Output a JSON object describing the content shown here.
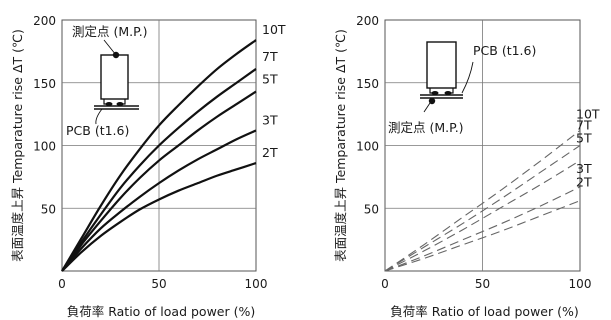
{
  "chart_data": [
    {
      "type": "line",
      "xlabel": "負荷率  Ratio of load power  (%)",
      "ylabel": "表面温度上昇  Temparature rise  ΔT (℃)",
      "xlim": [
        0,
        100
      ],
      "ylim": [
        0,
        200
      ],
      "x_ticks": [
        "0",
        "50",
        "100"
      ],
      "y_ticks": [
        "50",
        "100",
        "150",
        "200"
      ],
      "grid": true,
      "line_style": "solid",
      "series": [
        {
          "name": "10T",
          "x": [
            0,
            10,
            20,
            30,
            40,
            50,
            60,
            70,
            80,
            90,
            100
          ],
          "y": [
            0,
            26,
            52,
            76,
            97,
            116,
            132,
            147,
            161,
            173,
            184
          ]
        },
        {
          "name": "7T",
          "x": [
            0,
            10,
            20,
            30,
            40,
            50,
            60,
            70,
            80,
            90,
            100
          ],
          "y": [
            0,
            23,
            45,
            66,
            84,
            100,
            114,
            127,
            139,
            150,
            161
          ]
        },
        {
          "name": "5T",
          "x": [
            0,
            10,
            20,
            30,
            40,
            50,
            60,
            70,
            80,
            90,
            100
          ],
          "y": [
            0,
            21,
            40,
            58,
            74,
            88,
            100,
            112,
            123,
            133,
            143
          ]
        },
        {
          "name": "3T",
          "x": [
            0,
            10,
            20,
            30,
            40,
            50,
            60,
            70,
            80,
            90,
            100
          ],
          "y": [
            0,
            18,
            34,
            47,
            59,
            70,
            80,
            89,
            97,
            105,
            112
          ]
        },
        {
          "name": "2T",
          "x": [
            0,
            10,
            20,
            30,
            40,
            50,
            60,
            70,
            80,
            90,
            100
          ],
          "y": [
            0,
            15,
            28,
            39,
            49,
            57,
            64,
            70,
            76,
            81,
            86
          ]
        }
      ],
      "inset": {
        "point_label": "測定点 (M.P.)",
        "pcb_label": "PCB (t1.6)"
      }
    },
    {
      "type": "line",
      "xlabel": "負荷率  Ratio of load power  (%)",
      "ylabel": "表面温度上昇  Temparature rise  ΔT (℃)",
      "xlim": [
        0,
        100
      ],
      "ylim": [
        0,
        200
      ],
      "x_ticks": [
        "0",
        "50",
        "100"
      ],
      "y_ticks": [
        "50",
        "100",
        "150",
        "200"
      ],
      "grid": true,
      "line_style": "dashed",
      "series": [
        {
          "name": "10T",
          "x": [
            0,
            20,
            40,
            60,
            80,
            100
          ],
          "y": [
            0,
            21,
            43,
            65,
            88,
            112
          ]
        },
        {
          "name": "7T",
          "x": [
            0,
            20,
            40,
            60,
            80,
            100
          ],
          "y": [
            0,
            19,
            38,
            58,
            79,
            100
          ]
        },
        {
          "name": "5T",
          "x": [
            0,
            20,
            40,
            60,
            80,
            100
          ],
          "y": [
            0,
            16,
            33,
            51,
            69,
            88
          ]
        },
        {
          "name": "3T",
          "x": [
            0,
            20,
            40,
            60,
            80,
            100
          ],
          "y": [
            0,
            12,
            25,
            38,
            52,
            67
          ]
        },
        {
          "name": "2T",
          "x": [
            0,
            20,
            40,
            60,
            80,
            100
          ],
          "y": [
            0,
            10,
            21,
            32,
            44,
            56
          ]
        }
      ],
      "inset": {
        "point_label": "測定点 (M.P.)",
        "pcb_label": "PCB (t1.6)"
      }
    }
  ]
}
